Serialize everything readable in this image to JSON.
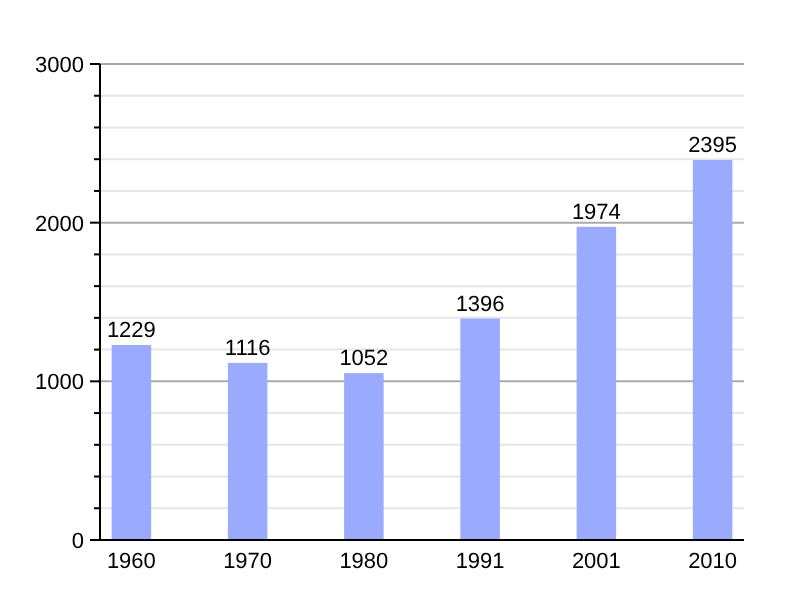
{
  "chart_data": {
    "type": "bar",
    "categories": [
      "1960",
      "1970",
      "1980",
      "1991",
      "2001",
      "2010"
    ],
    "values": [
      1229,
      1116,
      1052,
      1396,
      1974,
      2395
    ],
    "color": "#99aaff",
    "data_labels": true,
    "grid": "y",
    "ylim": [
      0,
      3000
    ],
    "yticks": [
      0,
      {
        "value": 200,
        "label": null
      },
      {
        "value": 400,
        "label": null
      },
      {
        "value": 600,
        "label": null
      },
      {
        "value": 800,
        "label": null
      },
      1000,
      {
        "value": 1200,
        "label": null
      },
      {
        "value": 1400,
        "label": null
      },
      {
        "value": 1600,
        "label": null
      },
      {
        "value": 1800,
        "label": null
      },
      2000,
      {
        "value": 2200,
        "label": null
      },
      {
        "value": 2400,
        "label": null
      },
      {
        "value": 2600,
        "label": null
      },
      {
        "value": 2800,
        "label": null
      },
      3000
    ]
  }
}
